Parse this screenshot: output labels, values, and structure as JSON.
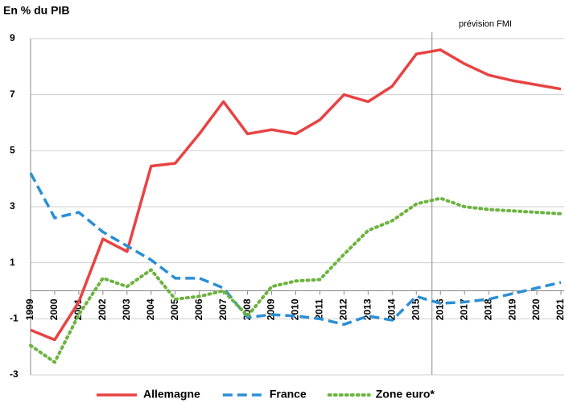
{
  "chart_data": {
    "type": "line",
    "title": "En % du PIB",
    "annotation": "prévision FMI",
    "x": [
      1999,
      2000,
      2001,
      2002,
      2003,
      2004,
      2005,
      2006,
      2007,
      2008,
      2009,
      2010,
      2011,
      2012,
      2013,
      2014,
      2015,
      2016,
      2017,
      2018,
      2019,
      2020,
      2021
    ],
    "xlim": [
      1999,
      2021
    ],
    "ylim": [
      -3,
      9
    ],
    "yticks": [
      9,
      7,
      5,
      3,
      1,
      -1,
      -3
    ],
    "grid": true,
    "series": [
      {
        "name": "Allemagne",
        "color": "#e84343",
        "style": "solid",
        "values": [
          -1.4,
          -1.75,
          -0.4,
          1.85,
          1.4,
          4.45,
          4.55,
          5.6,
          6.75,
          5.6,
          5.75,
          5.6,
          6.1,
          7.0,
          6.75,
          7.3,
          8.45,
          8.6,
          8.1,
          7.7,
          7.5,
          7.35,
          7.2
        ]
      },
      {
        "name": "France",
        "color": "#2a8fd4",
        "style": "dashed",
        "values": [
          4.2,
          2.6,
          2.8,
          2.1,
          1.6,
          1.1,
          0.45,
          0.45,
          0.1,
          -0.95,
          -0.85,
          -0.9,
          -1.0,
          -1.2,
          -0.9,
          -1.05,
          -0.2,
          -0.45,
          -0.4,
          -0.3,
          -0.1,
          0.1,
          0.3
        ]
      },
      {
        "name": "Zone euro*",
        "color": "#6cb33f",
        "style": "dotted",
        "values": [
          -1.95,
          -2.55,
          -0.85,
          0.45,
          0.15,
          0.75,
          -0.3,
          -0.2,
          0.0,
          -0.9,
          0.15,
          0.35,
          0.4,
          1.3,
          2.15,
          2.5,
          3.1,
          3.3,
          3.0,
          2.9,
          2.85,
          2.8,
          2.75
        ]
      }
    ],
    "legend": "bottom"
  }
}
